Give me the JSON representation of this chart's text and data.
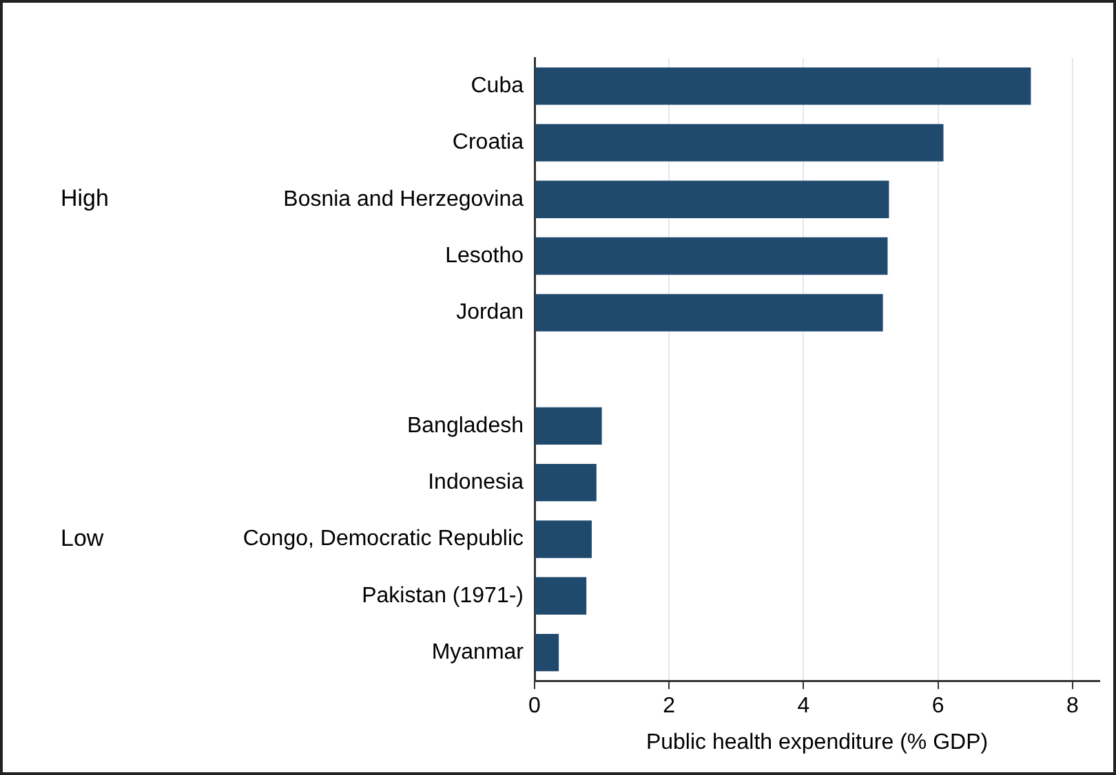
{
  "chart_data": {
    "type": "bar",
    "orientation": "horizontal",
    "xlabel": "Public health expenditure (% GDP)",
    "categories": [
      "Cuba",
      "Croatia",
      "Bosnia and Herzegovina",
      "Lesotho",
      "Jordan",
      null,
      "Bangladesh",
      "Indonesia",
      "Congo, Democratic Republic",
      "Pakistan (1971-)",
      "Myanmar"
    ],
    "values": [
      7.38,
      6.08,
      5.27,
      5.25,
      5.18,
      null,
      1.0,
      0.92,
      0.85,
      0.77,
      0.36
    ],
    "color": "#1f4a6e",
    "xlim": [
      0,
      8.4
    ],
    "xticks": [
      0,
      2,
      4,
      6,
      8
    ],
    "grid": "x",
    "legend": false,
    "annotations": [
      "High",
      "Low"
    ]
  }
}
